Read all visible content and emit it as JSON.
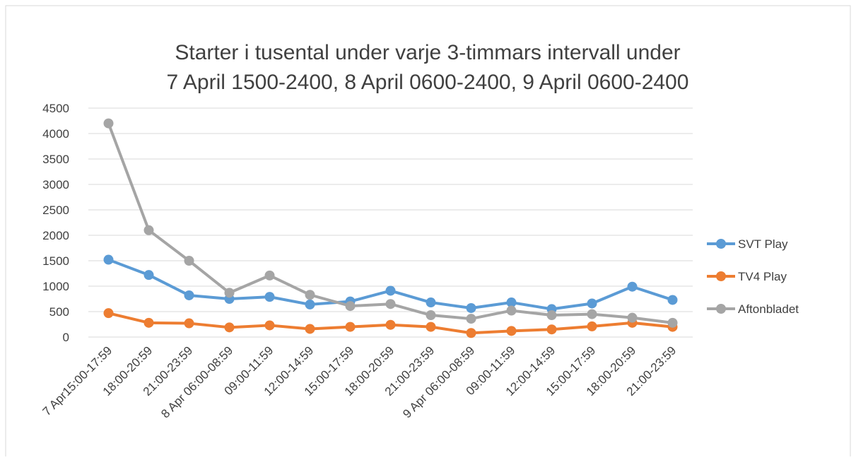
{
  "chart_data": {
    "type": "line",
    "title": [
      "Starter i tusental under varje 3-timmars intervall under",
      "7 April 1500-2400, 8 April 0600-2400, 9 April 0600-2400"
    ],
    "categories": [
      "7 Apr15:00-17:59",
      "18:00-20:59",
      "21:00-23:59",
      "8 Apr 06:00-08:59",
      "09:00-11:59",
      "12:00-14:59",
      "15:00-17:59",
      "18:00-20:59",
      "21:00-23:59",
      "9 Apr 06:00-08:59",
      "09:00-11:59",
      "12:00-14:59",
      "15:00-17:59",
      "18:00-20:59",
      "21:00-23:59"
    ],
    "series": [
      {
        "name": "SVT Play",
        "color": "#5b9bd5",
        "values": [
          1520,
          1220,
          820,
          750,
          790,
          640,
          700,
          910,
          680,
          570,
          680,
          550,
          660,
          990,
          730
        ]
      },
      {
        "name": "TV4 Play",
        "color": "#ed7d31",
        "values": [
          470,
          280,
          270,
          190,
          230,
          160,
          200,
          240,
          200,
          80,
          120,
          150,
          210,
          280,
          200
        ]
      },
      {
        "name": "Aftonbladet",
        "color": "#a5a5a5",
        "values": [
          4200,
          2100,
          1500,
          870,
          1210,
          830,
          610,
          650,
          430,
          360,
          520,
          430,
          450,
          380,
          280
        ]
      }
    ],
    "ylim": [
      0,
      4500
    ],
    "yticks": [
      0,
      500,
      1000,
      1500,
      2000,
      2500,
      3000,
      3500,
      4000,
      4500
    ],
    "grid": true,
    "legend": "right"
  }
}
